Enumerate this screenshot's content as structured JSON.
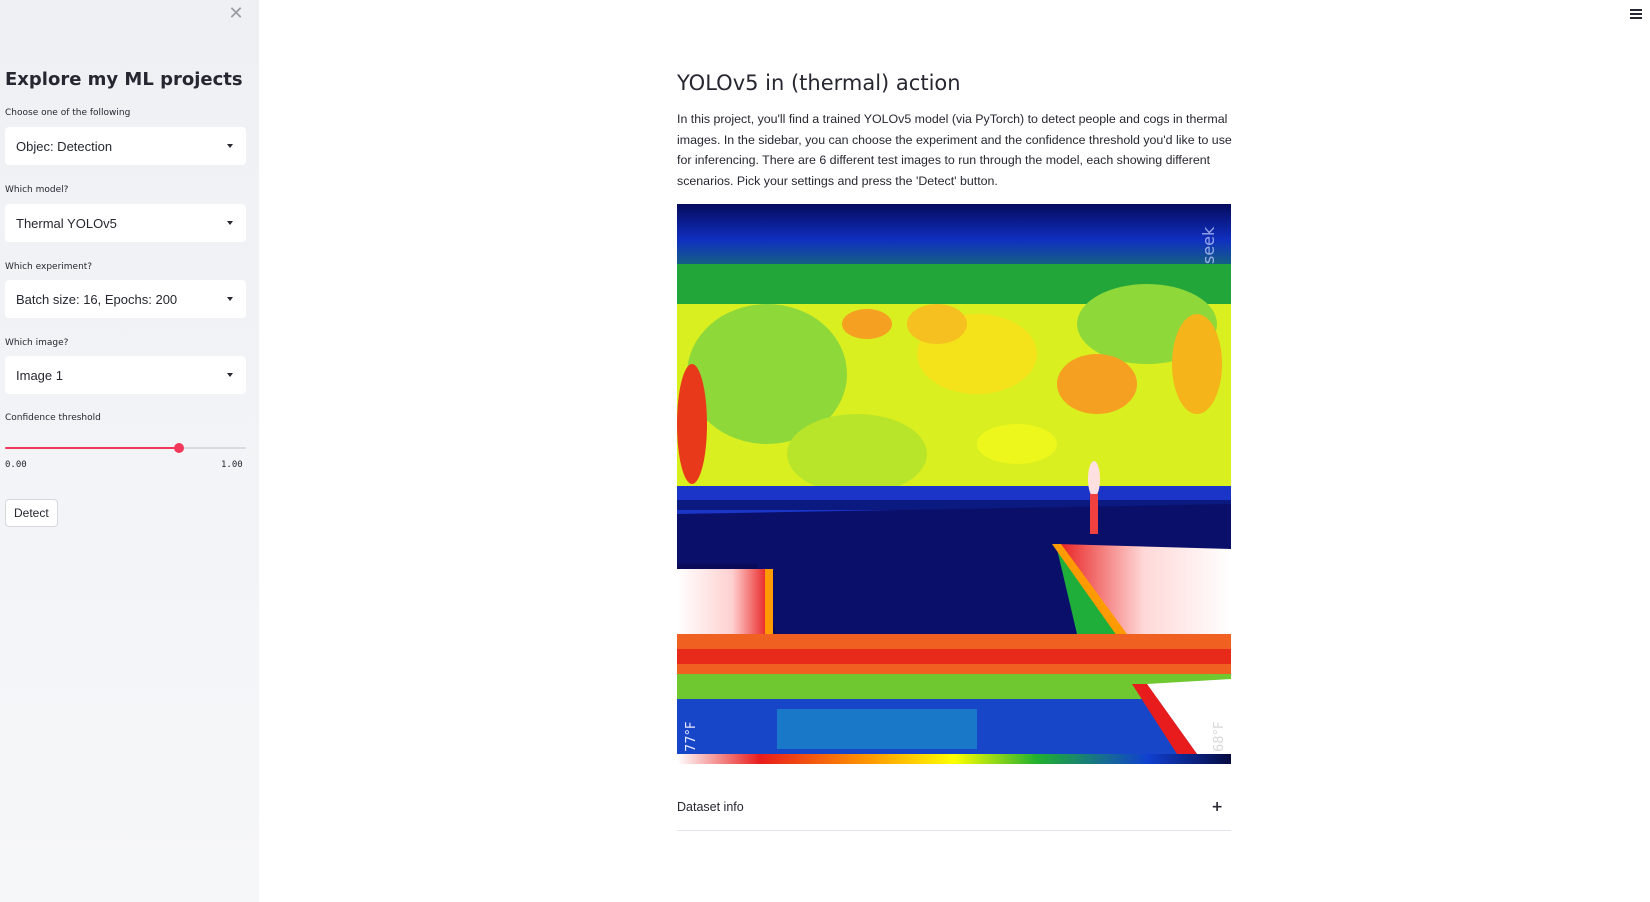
{
  "sidebar": {
    "title": "Explore my ML projects",
    "close_icon": "close-icon",
    "project_label": "Choose one of the following",
    "project_value": "Objec: Detection",
    "model_label": "Which model?",
    "model_value": "Thermal YOLOv5",
    "experiment_label": "Which experiment?",
    "experiment_value": "Batch size: 16, Epochs: 200",
    "image_label": "Which image?",
    "image_value": "Image 1",
    "confidence_label": "Confidence threshold",
    "confidence_value": 0.72,
    "confidence_min": "0.00",
    "confidence_max": "1.00",
    "detect_label": "Detect"
  },
  "main": {
    "menu_icon": "hamburger-icon",
    "title": "YOLOv5 in (thermal) action",
    "intro": "In this project, you'll find a trained YOLOv5 model (via PyTorch) to detect people and cogs in thermal images. In the sidebar, you can choose the experiment and the confidence threshold you'd like to use for inferencing. There are 6 different test images to run through the model, each showing different scenarios. Pick your settings and press the 'Detect' button.",
    "image": {
      "brand": "seek",
      "temp_left": "77°F",
      "temp_right": "68°F"
    },
    "expander_label": "Dataset info",
    "expander_icon": "plus-icon"
  },
  "colors": {
    "accent": "#f2385a",
    "sidebar_bg": "#f0f2f6",
    "text": "#262730"
  }
}
